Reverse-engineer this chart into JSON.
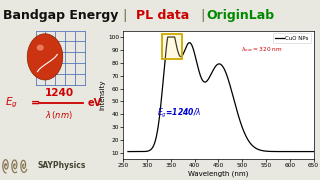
{
  "bg_color": "#e8e8e0",
  "plot_bg": "#ffffff",
  "title_bg": "#d8d8d0",
  "xlabel": "Wavelength (nm)",
  "ylabel": "Intensity",
  "xlim": [
    250,
    650
  ],
  "ylim": [
    5,
    105
  ],
  "yticks": [
    10,
    20,
    30,
    40,
    50,
    60,
    70,
    80,
    90,
    100
  ],
  "xticks": [
    250,
    300,
    350,
    400,
    450,
    500,
    550,
    600,
    650
  ],
  "legend_label": "CuO NPs",
  "highlight_box_color": "#ccaa00",
  "highlight_box_fill": "#ffee8840",
  "formula_on_plot": "E₉=1240/λ",
  "formula_color": "#0000cc",
  "left_formula_color": "#cc0000",
  "excitation_color": "#cc0000",
  "sayphysics_color": "#555544",
  "title_black": "Bandgap Energy ",
  "title_sep1": " | ",
  "title_red": "PL data ",
  "title_sep2": "|",
  "title_green": "OriginLab",
  "title_fontsize": 9,
  "sep_color": "#888866",
  "black_color": "#111111",
  "green_color": "#008800"
}
